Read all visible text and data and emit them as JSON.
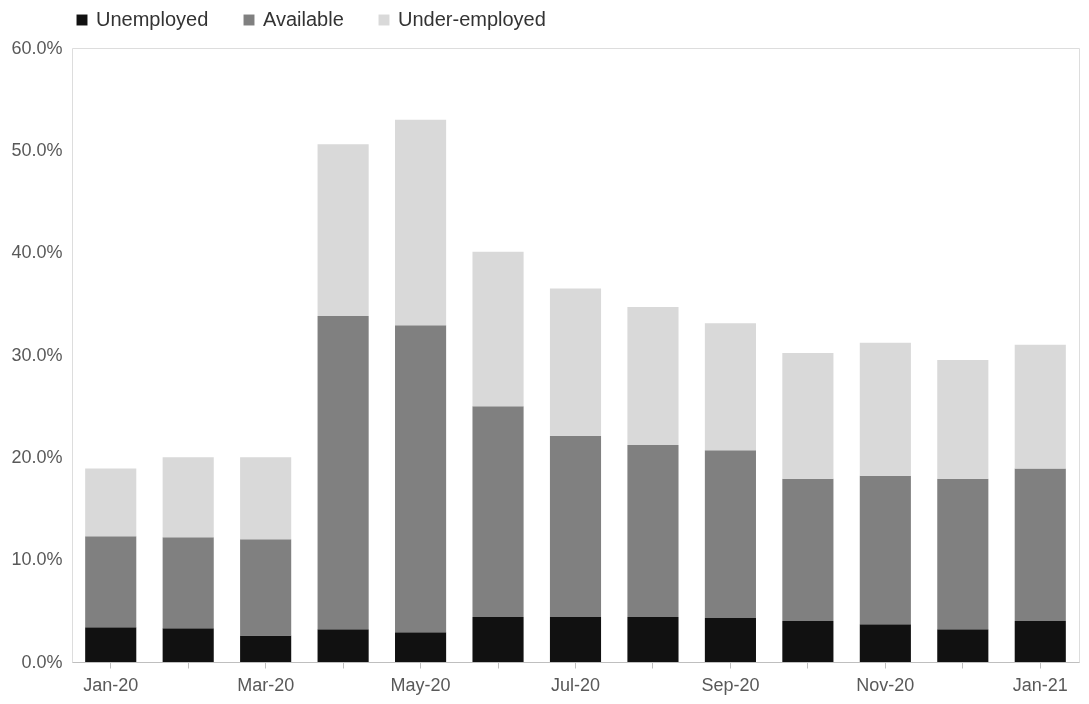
{
  "chart_data": {
    "type": "bar",
    "stacked": true,
    "legend": "top",
    "grid": false,
    "categories": [
      "Jan-20",
      null,
      "Mar-20",
      null,
      "May-20",
      null,
      "Jul-20",
      null,
      "Sep-20",
      null,
      "Nov-20",
      null,
      "Jan-21"
    ],
    "ylim": [
      0,
      60
    ],
    "yticks": [
      {
        "value": 0,
        "label": "0.0%"
      },
      {
        "value": 10,
        "label": "10.0%"
      },
      {
        "value": 20,
        "label": "20.0%"
      },
      {
        "value": 30,
        "label": "30.0%"
      },
      {
        "value": 40,
        "label": "40.0%"
      },
      {
        "value": 50,
        "label": "50.0%"
      },
      {
        "value": 60,
        "label": "60.0%"
      }
    ],
    "series": [
      {
        "name": "Unemployed",
        "color": "#111111",
        "values": [
          3.4,
          3.3,
          2.6,
          3.2,
          2.9,
          4.4,
          4.4,
          4.4,
          4.3,
          4.0,
          3.7,
          3.2,
          4.0
        ]
      },
      {
        "name": "Available",
        "color": "#808080",
        "values": [
          8.9,
          8.9,
          9.4,
          30.6,
          30.0,
          20.6,
          17.7,
          16.8,
          16.4,
          13.9,
          14.5,
          14.7,
          14.9
        ]
      },
      {
        "name": "Under-employed",
        "color": "#d9d9d9",
        "values": [
          6.6,
          7.8,
          8.0,
          16.8,
          20.1,
          15.1,
          14.4,
          13.5,
          12.4,
          12.3,
          13.0,
          11.6,
          12.1
        ]
      }
    ]
  }
}
